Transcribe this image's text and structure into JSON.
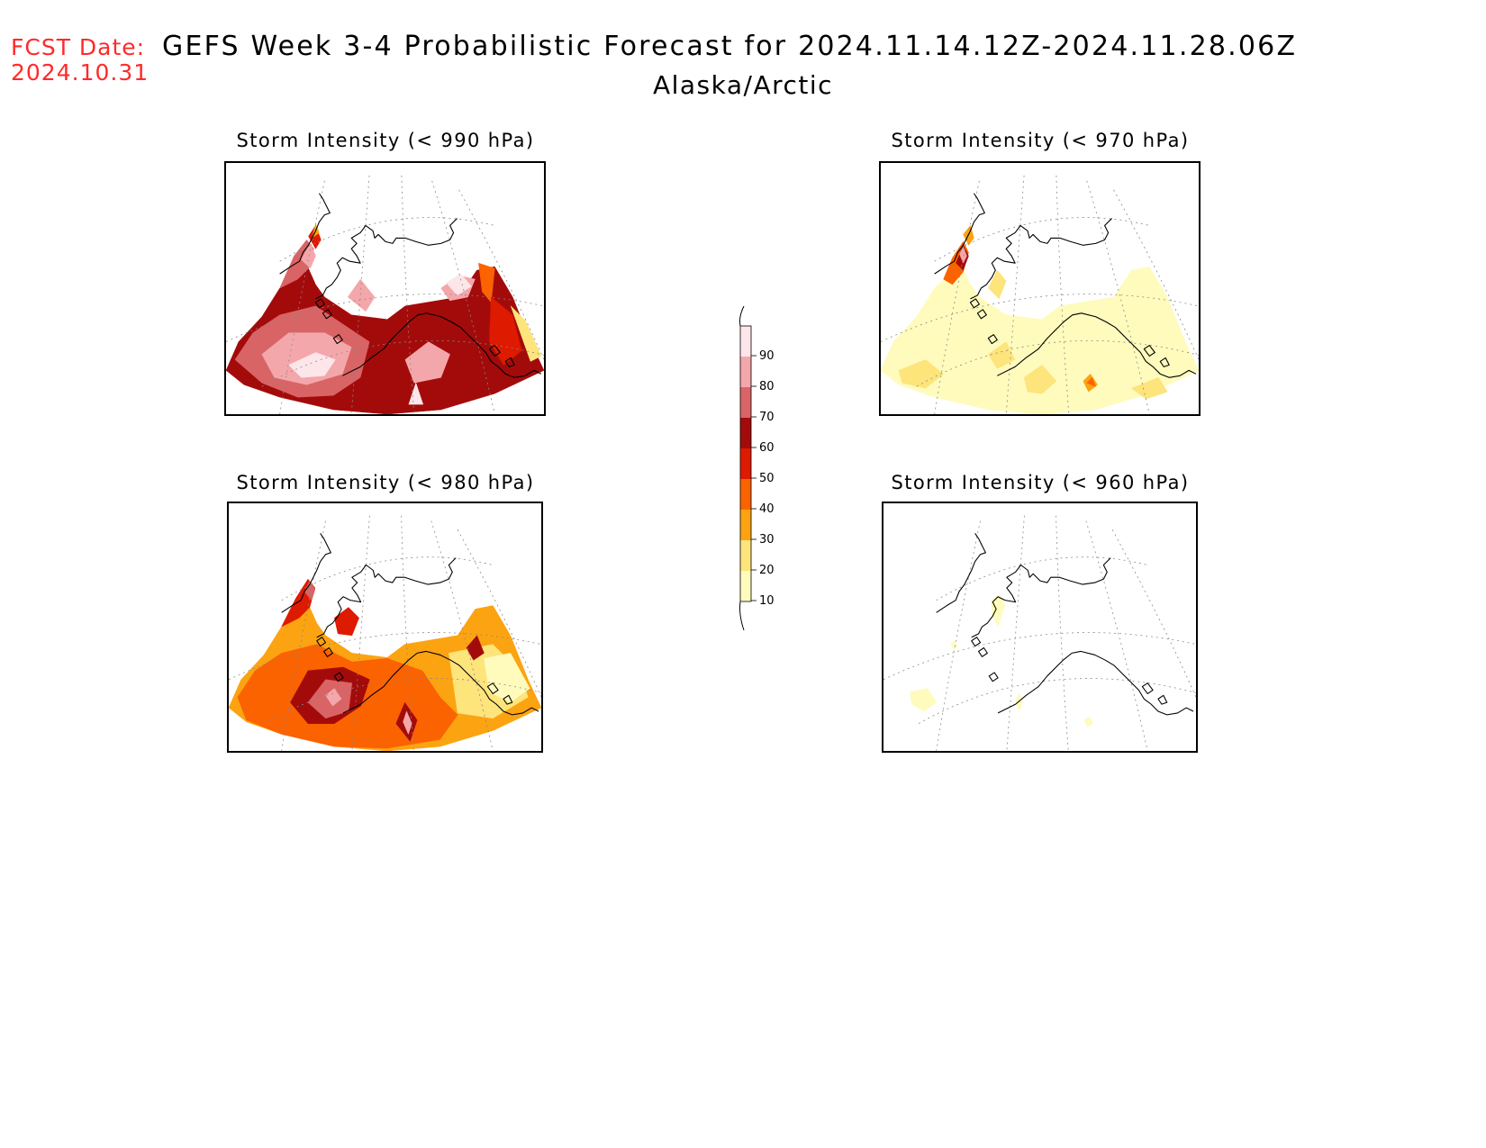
{
  "header": {
    "fcst_label": "FCST Date:",
    "fcst_date": "2024.10.31",
    "title": "GEFS Week 3-4 Probabilistic Forecast for 2024.11.14.12Z-2024.11.28.06Z",
    "region": "Alaska/Arctic"
  },
  "panels": [
    {
      "id": "p990",
      "title": "Storm Intensity (< 990 hPa)",
      "intensity": "high"
    },
    {
      "id": "p970",
      "title": "Storm Intensity (< 970 hPa)",
      "intensity": "low"
    },
    {
      "id": "p980",
      "title": "Storm Intensity (< 980 hPa)",
      "intensity": "medium"
    },
    {
      "id": "p960",
      "title": "Storm Intensity (< 960 hPa)",
      "intensity": "minimal"
    }
  ],
  "colorbar": {
    "labels": [
      "90",
      "80",
      "70",
      "60",
      "50",
      "40",
      "30",
      "20",
      "10"
    ],
    "colors": {
      "90_100": "#fde6ea",
      "80_90": "#f4a7aa",
      "70_80": "#d96465",
      "60_70": "#a30b0b",
      "50_60": "#de1a00",
      "40_50": "#fb6200",
      "30_40": "#fca311",
      "20_30": "#fde47b",
      "10_20": "#fefbbd"
    }
  }
}
